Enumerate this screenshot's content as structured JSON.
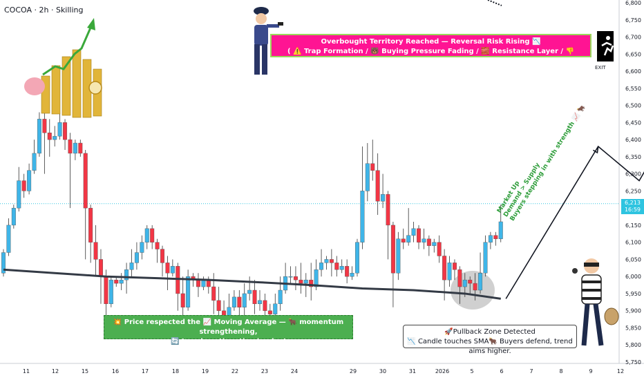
{
  "symbol_title": "COCOA · 2h · Skilling",
  "current_price": {
    "value": "6,213",
    "countdown": "16:59",
    "color": "#2ec4e0"
  },
  "colors": {
    "up": "#3fb5e8",
    "down": "#f23645",
    "ma": "#333a45",
    "pink_box": "#ff1493",
    "green_box": "#4caf50",
    "accent_line": "#131722"
  },
  "annotations": {
    "overbought_line1": "Overbought Territory Reached — Reversal Risk Rising 📉",
    "overbought_line2": "( ⚠️ Trap Formation / 🐻 Buying Pressure Fading / 🧱 Resistance Layer / 👎 Correction Watch)",
    "ma_line1": "💥 Price respected the 📈 Moving Average — 🐂 momentum strengthening,",
    "ma_line2": "🔄 trend continuation in play!",
    "pullback_line1": "🚀Pullback Zone Detected",
    "pullback_line2": "📉 Candle touches SMA🐂 Buyers defend, trend aims higher.",
    "market_up_line1": "Market Up",
    "market_up_line2": "Demand > Supply",
    "market_up_line3": "Buyers stepping in with strength 📈 🐂",
    "exit_label": "EXIT"
  },
  "icons": [
    "money-growth-icon",
    "police-officer-icon",
    "exit-sign-icon",
    "thief-icon"
  ],
  "chart_data": {
    "type": "candlestick",
    "title": "",
    "ylim": [
      5750,
      6800
    ],
    "y_ticks": [
      5750,
      5800,
      5850,
      5900,
      5950,
      6000,
      6050,
      6100,
      6150,
      6200,
      6250,
      6300,
      6350,
      6400,
      6450,
      6500,
      6550,
      6600,
      6650,
      6700,
      6750,
      6800
    ],
    "y_tick_labels": [
      "5,750",
      "5,800",
      "5,850",
      "5,900",
      "5,950",
      "6,000",
      "6,050",
      "6,100",
      "6,150",
      "6,200",
      "6,250",
      "6,300",
      "6,350",
      "6,400",
      "6,450",
      "6,500",
      "6,550",
      "6,600",
      "6,650",
      "6,700",
      "6,750",
      "6,800"
    ],
    "x_tick_labels": [
      "11",
      "12",
      "15",
      "16",
      "17",
      "18",
      "19",
      "22",
      "23",
      "24",
      "29",
      "30",
      "31",
      "2026",
      "5",
      "6",
      "7",
      "8",
      "9",
      "12"
    ],
    "candles": [
      [
        6010,
        6070,
        6000,
        6080
      ],
      [
        6070,
        6150,
        6060,
        6170
      ],
      [
        6150,
        6200,
        6140,
        6210
      ],
      [
        6200,
        6280,
        6190,
        6320
      ],
      [
        6280,
        6250,
        6230,
        6300
      ],
      [
        6250,
        6310,
        6240,
        6330
      ],
      [
        6310,
        6360,
        6300,
        6400
      ],
      [
        6360,
        6460,
        6350,
        6480
      ],
      [
        6460,
        6420,
        6300,
        6480
      ],
      [
        6420,
        6400,
        6350,
        6460
      ],
      [
        6400,
        6410,
        6380,
        6440
      ],
      [
        6410,
        6450,
        6400,
        6480
      ],
      [
        6450,
        6400,
        6370,
        6460
      ],
      [
        6400,
        6360,
        6200,
        6420
      ],
      [
        6360,
        6390,
        6340,
        6400
      ],
      [
        6390,
        6360,
        6350,
        6400
      ],
      [
        6360,
        6200,
        6050,
        6370
      ],
      [
        6200,
        6100,
        6040,
        6210
      ],
      [
        6100,
        6050,
        6000,
        6150
      ],
      [
        6050,
        6000,
        5920,
        6080
      ],
      [
        6000,
        5920,
        5880,
        6020
      ],
      [
        5920,
        5990,
        5910,
        6000
      ],
      [
        5990,
        5980,
        5970,
        6000
      ],
      [
        5980,
        5990,
        5960,
        6010
      ],
      [
        5990,
        6020,
        5950,
        6040
      ],
      [
        6020,
        6040,
        6000,
        6080
      ],
      [
        6040,
        6070,
        6020,
        6100
      ],
      [
        6070,
        6100,
        6050,
        6120
      ],
      [
        6100,
        6140,
        6080,
        6150
      ],
      [
        6140,
        6100,
        6080,
        6150
      ],
      [
        6100,
        6080,
        6040,
        6110
      ],
      [
        6080,
        6040,
        6000,
        6090
      ],
      [
        6040,
        6010,
        5960,
        6060
      ],
      [
        6010,
        6030,
        6000,
        6050
      ],
      [
        6030,
        5950,
        5900,
        6040
      ],
      [
        5950,
        5910,
        5870,
        6000
      ],
      [
        5910,
        6000,
        5900,
        6020
      ],
      [
        6000,
        5990,
        5970,
        6010
      ],
      [
        5990,
        5970,
        5940,
        6010
      ],
      [
        5970,
        5990,
        5960,
        6000
      ],
      [
        5990,
        5970,
        5950,
        6000
      ],
      [
        5970,
        5930,
        5890,
        6010
      ],
      [
        5930,
        5900,
        5880,
        5970
      ],
      [
        5900,
        5880,
        5850,
        5930
      ],
      [
        5880,
        5910,
        5860,
        5950
      ],
      [
        5910,
        5940,
        5900,
        5960
      ],
      [
        5940,
        5910,
        5880,
        5960
      ],
      [
        5910,
        5950,
        5880,
        5980
      ],
      [
        5950,
        5960,
        5930,
        6000
      ],
      [
        5960,
        5920,
        5890,
        5990
      ],
      [
        5920,
        5930,
        5900,
        5960
      ],
      [
        5930,
        5900,
        5870,
        5950
      ],
      [
        5900,
        5890,
        5870,
        5920
      ],
      [
        5890,
        5920,
        5880,
        5950
      ],
      [
        5920,
        5960,
        5900,
        6000
      ],
      [
        5960,
        6000,
        5950,
        6040
      ],
      [
        6000,
        6000,
        5980,
        6030
      ],
      [
        6000,
        5990,
        5960,
        6030
      ],
      [
        5990,
        5980,
        5950,
        6040
      ],
      [
        5980,
        5990,
        5940,
        6010
      ],
      [
        5990,
        5970,
        5930,
        6040
      ],
      [
        5970,
        6020,
        5960,
        6050
      ],
      [
        6020,
        6040,
        6000,
        6080
      ],
      [
        6040,
        6050,
        6020,
        6060
      ],
      [
        6050,
        6040,
        6000,
        6080
      ],
      [
        6040,
        6020,
        6000,
        6060
      ],
      [
        6020,
        6030,
        6010,
        6050
      ],
      [
        6030,
        6000,
        5980,
        6050
      ],
      [
        6000,
        6010,
        5990,
        6030
      ],
      [
        6010,
        6100,
        6000,
        6110
      ],
      [
        6100,
        6250,
        6080,
        6380
      ],
      [
        6250,
        6330,
        6220,
        6390
      ],
      [
        6330,
        6310,
        6280,
        6400
      ],
      [
        6310,
        6220,
        6180,
        6360
      ],
      [
        6220,
        6240,
        6200,
        6300
      ],
      [
        6240,
        6150,
        6050,
        6250
      ],
      [
        6150,
        6010,
        5910,
        6160
      ],
      [
        6010,
        6110,
        5990,
        6130
      ],
      [
        6110,
        6100,
        6080,
        6140
      ],
      [
        6100,
        6120,
        6090,
        6200
      ],
      [
        6120,
        6140,
        6100,
        6160
      ],
      [
        6140,
        6100,
        6080,
        6150
      ],
      [
        6100,
        6110,
        6080,
        6140
      ],
      [
        6110,
        6090,
        6060,
        6120
      ],
      [
        6090,
        6100,
        6070,
        6110
      ],
      [
        6100,
        6060,
        6040,
        6120
      ],
      [
        6060,
        5990,
        5930,
        6080
      ],
      [
        5990,
        6040,
        5970,
        6060
      ],
      [
        6040,
        6020,
        5990,
        6050
      ],
      [
        6020,
        5970,
        5920,
        6030
      ],
      [
        5970,
        5990,
        5940,
        6010
      ],
      [
        5990,
        5980,
        5950,
        6000
      ],
      [
        5980,
        5960,
        5930,
        6010
      ],
      [
        5960,
        6010,
        5950,
        6070
      ],
      [
        6010,
        6100,
        6000,
        6120
      ],
      [
        6100,
        6120,
        6080,
        6130
      ],
      [
        6120,
        6110,
        6090,
        6130
      ],
      [
        6110,
        6160,
        6100,
        6210
      ]
    ],
    "moving_average": [
      [
        0,
        6020
      ],
      [
        10,
        6010
      ],
      [
        20,
        6000
      ],
      [
        30,
        5995
      ],
      [
        40,
        5990
      ],
      [
        50,
        5983
      ],
      [
        60,
        5975
      ],
      [
        70,
        5965
      ],
      [
        80,
        5960
      ],
      [
        90,
        5950
      ],
      [
        97,
        5935
      ]
    ],
    "projection_path": [
      [
        98,
        5935
      ],
      [
        116,
        6380
      ],
      [
        124,
        6280
      ],
      [
        136,
        6590
      ]
    ]
  }
}
